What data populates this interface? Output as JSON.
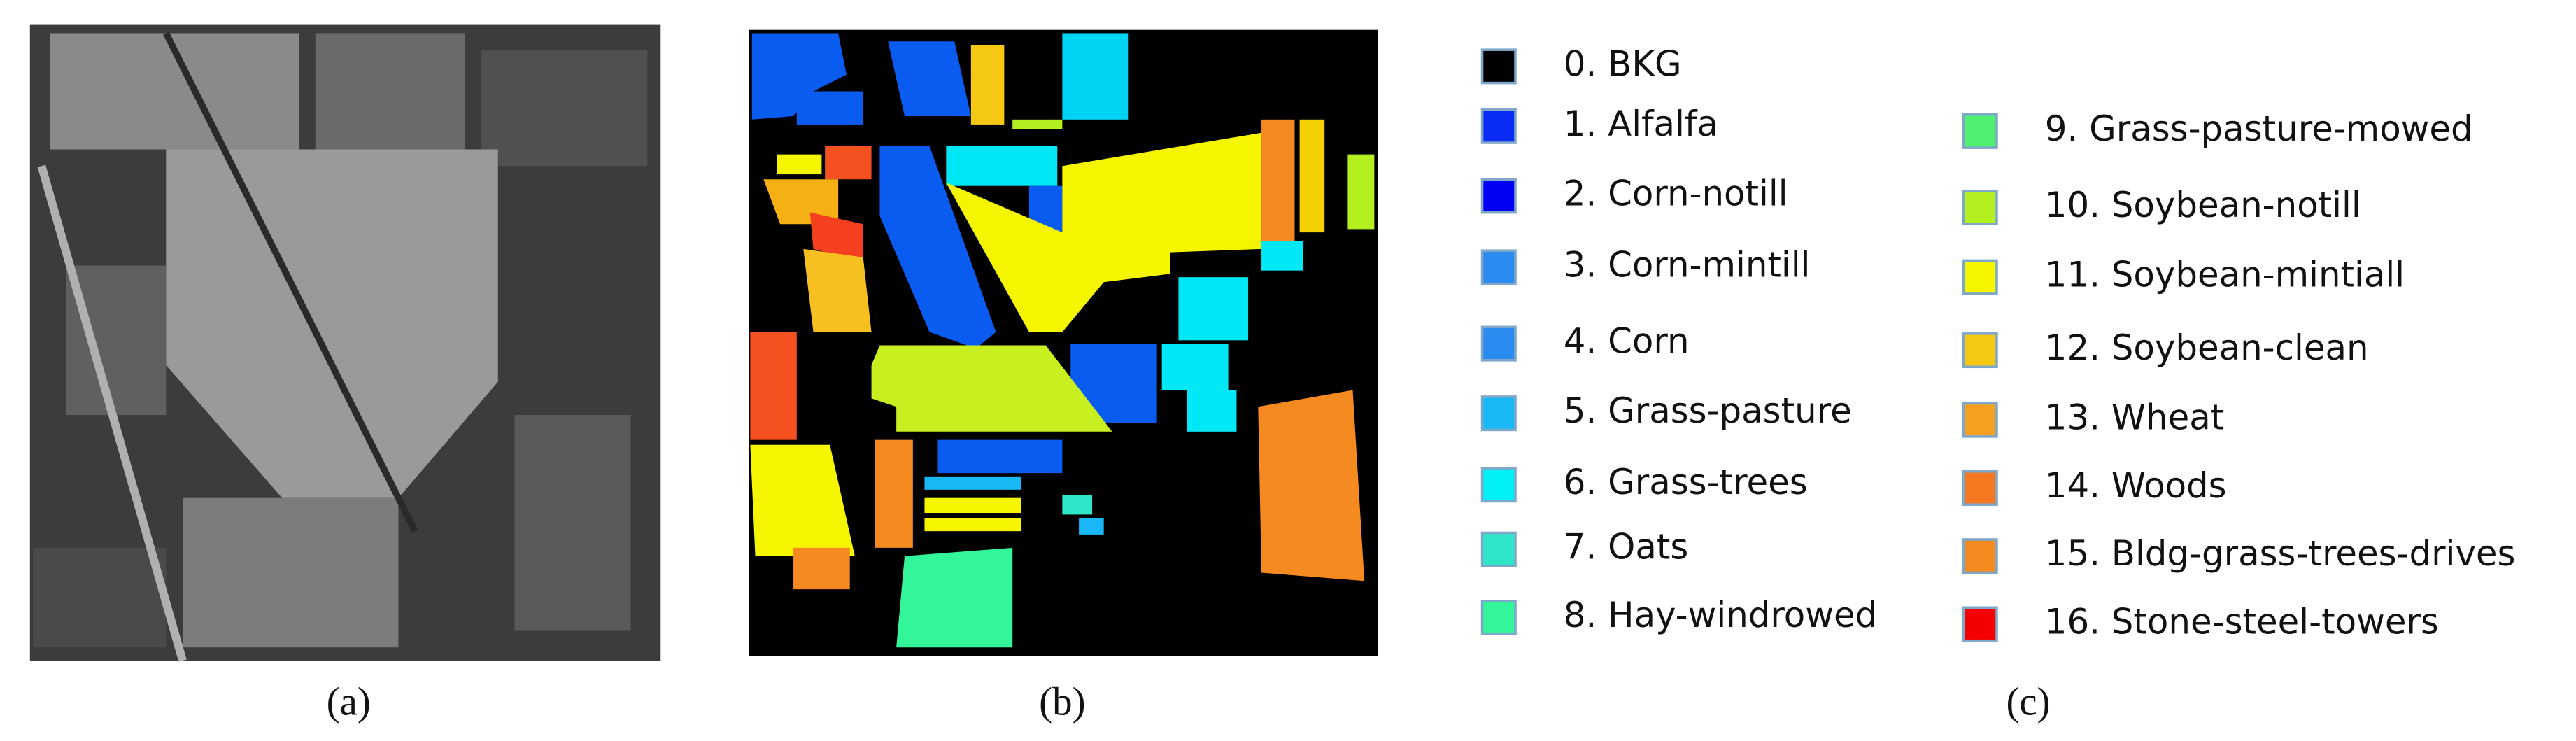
{
  "figure": {
    "panels": [
      {
        "caption": "(a)"
      },
      {
        "caption": "(b)"
      },
      {
        "caption": "(c)"
      }
    ],
    "legend": {
      "items": [
        {
          "label": "0. BKG",
          "color": "#000000"
        },
        {
          "label": "1. Alfalfa",
          "color": "#0a2cf5"
        },
        {
          "label": "2. Corn-notill",
          "color": "#0000f5"
        },
        {
          "label": "3. Corn-mintill",
          "color": "#2a8cf0"
        },
        {
          "label": "4. Corn",
          "color": "#2a8cf0"
        },
        {
          "label": "5. Grass-pasture",
          "color": "#17b8f5"
        },
        {
          "label": "6. Grass-trees",
          "color": "#00f0f5"
        },
        {
          "label": "7. Oats",
          "color": "#2ee6c8"
        },
        {
          "label": "8. Hay-windrowed",
          "color": "#33f59a"
        },
        {
          "label": "9. Grass-pasture-mowed",
          "color": "#4ef070"
        },
        {
          "label": "10. Soybean-notill",
          "color": "#b4f020"
        },
        {
          "label": "11. Soybean-mintiall",
          "color": "#f5f500"
        },
        {
          "label": "12. Soybean-clean",
          "color": "#f5c814"
        },
        {
          "label": "13. Wheat",
          "color": "#f5a020"
        },
        {
          "label": "14. Woods",
          "color": "#f57820"
        },
        {
          "label": "15. Bldg-grass-trees-drives",
          "color": "#f58a20"
        },
        {
          "label": "16. Stone-steel-towers",
          "color": "#f50000"
        }
      ]
    }
  }
}
